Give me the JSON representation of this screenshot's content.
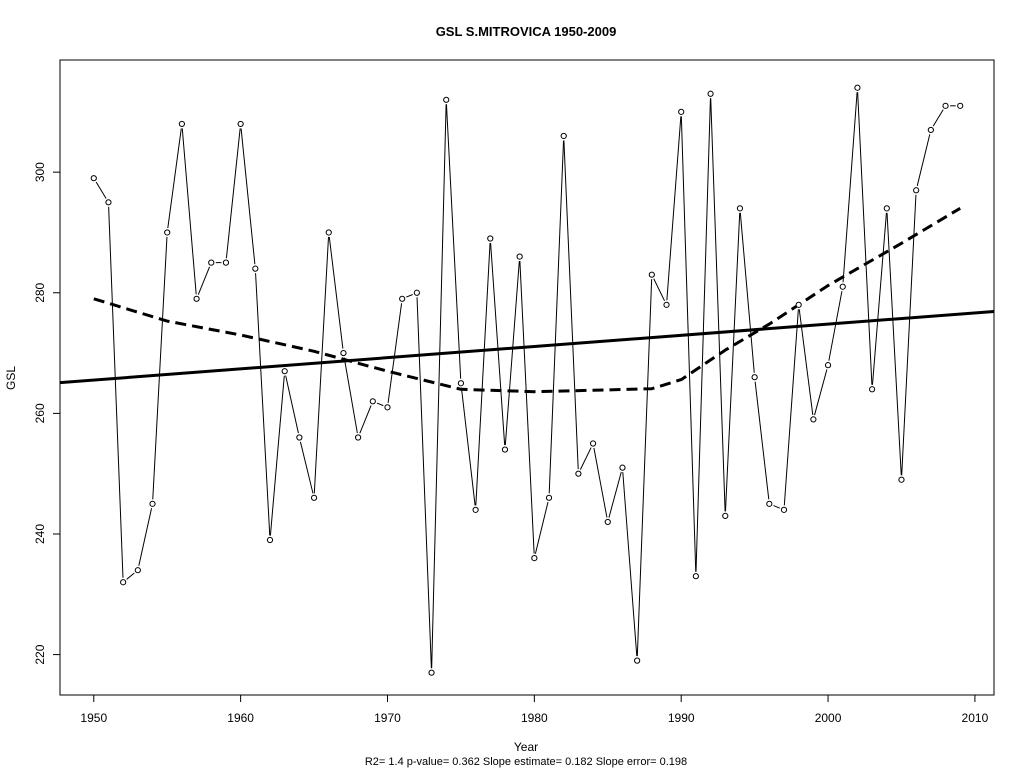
{
  "chart_data": {
    "type": "line",
    "title": "GSL   S.MITROVICA 1950-2009",
    "xlabel": "Year",
    "ylabel": "GSL",
    "caption": "R2= 1.4  p-value= 0.362  Slope estimate= 0.182  Slope error= 0.198",
    "xlim": [
      1947.7,
      2011.3
    ],
    "ylim": [
      213.3,
      318.6
    ],
    "x_ticks": [
      1950,
      1960,
      1970,
      1980,
      1990,
      2000,
      2010
    ],
    "y_ticks": [
      220,
      240,
      260,
      280,
      300
    ],
    "grid": false,
    "series": [
      {
        "style": "thin line with open circle markers",
        "x": [
          1950,
          1951,
          1952,
          1953,
          1954,
          1955,
          1956,
          1957,
          1958,
          1959,
          1960,
          1961,
          1962,
          1963,
          1964,
          1965,
          1966,
          1967,
          1968,
          1969,
          1970,
          1971,
          1972,
          1973,
          1974,
          1975,
          1976,
          1977,
          1978,
          1979,
          1980,
          1981,
          1982,
          1983,
          1984,
          1985,
          1986,
          1987,
          1988,
          1989,
          1990,
          1991,
          1992,
          1993,
          1994,
          1995,
          1996,
          1997,
          1998,
          1999,
          2000,
          2001,
          2002,
          2003,
          2004,
          2005,
          2006,
          2007,
          2008,
          2009
        ],
        "values": [
          299,
          295,
          232,
          234,
          245,
          290,
          308,
          279,
          285,
          285,
          308,
          284,
          239,
          267,
          256,
          246,
          290,
          270,
          256,
          262,
          261,
          279,
          280,
          217,
          312,
          265,
          244,
          289,
          254,
          286,
          236,
          246,
          306,
          250,
          255,
          242,
          251,
          219,
          283,
          278,
          310,
          233,
          313,
          243,
          294,
          266,
          245,
          244,
          278,
          259,
          268,
          281,
          314,
          264,
          294,
          249,
          297,
          307,
          311,
          311
        ]
      },
      {
        "style": "solid thick linear trend",
        "x": [
          1947.7,
          2011.3
        ],
        "values": [
          265.1,
          276.9
        ]
      },
      {
        "style": "dashed thick smooth trend",
        "x": [
          1950,
          1955,
          1960,
          1965,
          1970,
          1975,
          1980,
          1985,
          1988,
          1990,
          1993,
          1996,
          2000,
          2005,
          2009
        ],
        "values": [
          279,
          275.3,
          273,
          270.3,
          267,
          264,
          263.6,
          263.9,
          264.1,
          265.6,
          270.5,
          274.8,
          281.2,
          288.2,
          294
        ]
      }
    ]
  }
}
